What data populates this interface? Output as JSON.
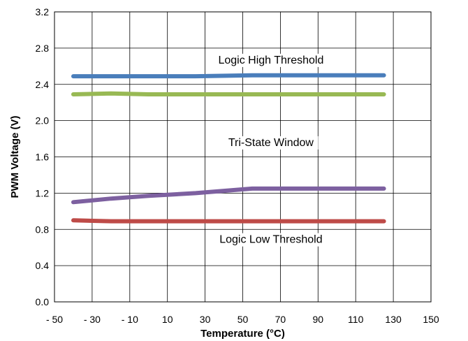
{
  "chart_data": {
    "type": "line",
    "title": "",
    "xlabel": "Temperature (°C)",
    "ylabel": "PWM Voltage (V)",
    "xlim": [
      -50,
      150
    ],
    "ylim": [
      0,
      3.2
    ],
    "x_ticks": [
      "-50",
      "-30",
      "-10",
      "10",
      "30",
      "50",
      "70",
      "90",
      "110",
      "130",
      "150"
    ],
    "y_ticks": [
      "0.0",
      "0.4",
      "0.8",
      "1.2",
      "1.6",
      "2.0",
      "2.4",
      "2.8",
      "3.2"
    ],
    "grid": true,
    "legend": "none",
    "series": [
      {
        "color": "#4a7ebb",
        "x": [
          -40,
          -20,
          0,
          25,
          55,
          85,
          125
        ],
        "y": [
          2.49,
          2.49,
          2.49,
          2.49,
          2.5,
          2.5,
          2.5
        ]
      },
      {
        "color": "#98b954",
        "x": [
          -40,
          -20,
          0,
          25,
          55,
          85,
          125
        ],
        "y": [
          2.29,
          2.3,
          2.29,
          2.29,
          2.29,
          2.29,
          2.29
        ]
      },
      {
        "color": "#7d60a0",
        "x": [
          -40,
          -20,
          0,
          25,
          55,
          85,
          125
        ],
        "y": [
          1.1,
          1.14,
          1.17,
          1.2,
          1.25,
          1.25,
          1.25
        ]
      },
      {
        "color": "#be4b48",
        "x": [
          -40,
          -20,
          0,
          25,
          55,
          85,
          125
        ],
        "y": [
          0.9,
          0.89,
          0.89,
          0.89,
          0.89,
          0.89,
          0.89
        ]
      }
    ],
    "annotations": [
      {
        "text": "Logic High Threshold",
        "x": 65,
        "y": 2.63
      },
      {
        "text": "Tri-State Window",
        "x": 65,
        "y": 1.72
      },
      {
        "text": "Logic Low Threshold",
        "x": 65,
        "y": 0.65
      }
    ]
  }
}
